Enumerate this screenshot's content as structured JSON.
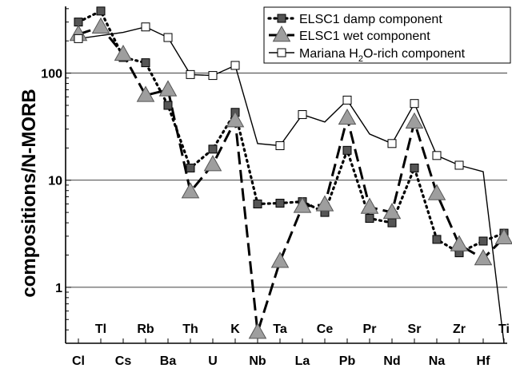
{
  "chart_data": {
    "type": "line",
    "ylabel": "compositions/N-MORB",
    "yscale": "log",
    "ylim": [
      0.3,
      420
    ],
    "yticks": [
      {
        "value": 1,
        "label": "1"
      },
      {
        "value": 10,
        "label": "10"
      },
      {
        "value": 100,
        "label": "100"
      }
    ],
    "grid": "horizontal",
    "legend_position": "top-right",
    "categories": [
      "Cl",
      "Tl",
      "Cs",
      "Rb",
      "Ba",
      "Th",
      "U",
      "K",
      "Nb",
      "Ta",
      "La",
      "Ce",
      "Pb",
      "Pr",
      "Nd",
      "Sr",
      "Na",
      "Zr",
      "Hf",
      "Ti"
    ],
    "series": [
      {
        "name": "ELSC1 damp component",
        "style": "dotted-filled-square",
        "color": "#000000",
        "marker_color": "#555555",
        "values": [
          300,
          380,
          140,
          125,
          50,
          13,
          19.5,
          43,
          6.0,
          6.1,
          6.3,
          5.0,
          19,
          4.4,
          4.0,
          13,
          2.8,
          2.1,
          2.7,
          3.2
        ]
      },
      {
        "name": "ELSC1 wet component",
        "style": "dashed-gray-triangle",
        "color": "#000000",
        "marker_color": "#9e9e9e",
        "values": [
          230,
          270,
          150,
          62,
          70,
          7.8,
          14,
          36,
          0.38,
          1.75,
          5.7,
          5.9,
          38,
          5.6,
          5.0,
          35,
          7.5,
          2.5,
          1.85,
          2.9
        ]
      },
      {
        "name_parts": [
          "Mariana H",
          "2",
          "O-rich component"
        ],
        "style": "solid-open-square",
        "color": "#000000",
        "marker_color": "#ffffff",
        "points": [
          {
            "x": "Cl",
            "y": 210,
            "marker": true
          },
          {
            "x": "Cs",
            "y": 240,
            "marker": false
          },
          {
            "x": "Rb",
            "y": 270,
            "marker": true
          },
          {
            "x": "Ba",
            "y": 215,
            "marker": true
          },
          {
            "x": "Th",
            "y": 97,
            "marker": true
          },
          {
            "x": "U",
            "y": 95,
            "marker": true
          },
          {
            "x": "K",
            "y": 118,
            "marker": true
          },
          {
            "x": "Nb",
            "y": 22,
            "marker": false
          },
          {
            "x": "Ta",
            "y": 21,
            "marker": true
          },
          {
            "x": "La",
            "y": 41,
            "marker": true
          },
          {
            "x": "Ce",
            "y": 35,
            "marker": false
          },
          {
            "x": "Pb",
            "y": 56,
            "marker": true
          },
          {
            "x": "Pr",
            "y": 27,
            "marker": false
          },
          {
            "x": "Nd",
            "y": 22,
            "marker": true
          },
          {
            "x": "Sr",
            "y": 52,
            "marker": true
          },
          {
            "x": "Na",
            "y": 17,
            "marker": true
          },
          {
            "x": "Zr",
            "y": 13.8,
            "marker": true
          },
          {
            "x": "Hf",
            "y": 12,
            "marker": false
          },
          {
            "x": "Ti",
            "y": 0.3,
            "marker": false
          }
        ]
      }
    ]
  }
}
